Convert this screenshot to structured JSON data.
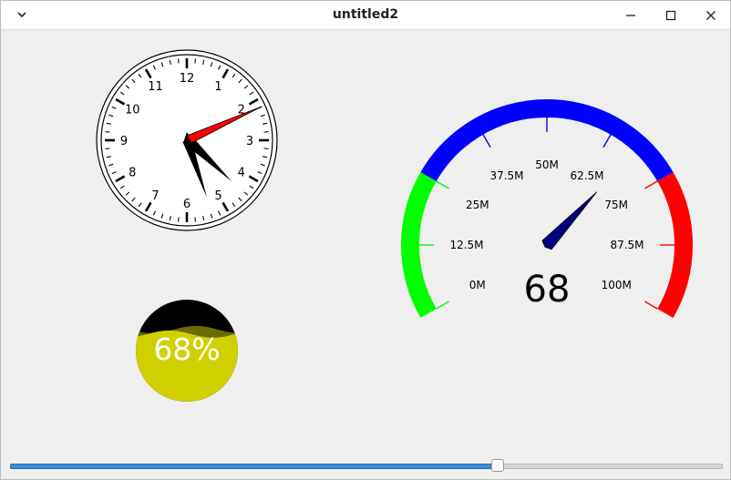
{
  "window": {
    "title": "untitled2",
    "icons": {
      "menu": "chevron-down-icon",
      "minimize": "minimize-icon",
      "maximize": "maximize-icon",
      "close": "close-icon"
    }
  },
  "clock": {
    "numbers": [
      "12",
      "1",
      "2",
      "3",
      "4",
      "5",
      "6",
      "7",
      "8",
      "9",
      "10",
      "11"
    ],
    "hour_hand_color": "#000000",
    "second_hand_color": "#ff0000"
  },
  "gauge": {
    "value_label": "68",
    "value": 68,
    "min": 0,
    "max": 100,
    "tick_labels": [
      "0M",
      "12.5M",
      "25M",
      "37.5M",
      "50M",
      "62.5M",
      "75M",
      "87.5M",
      "100M"
    ],
    "colors": {
      "low": "#00ff00",
      "mid": "#0000ff",
      "high": "#ff0000",
      "needle": "#000080"
    }
  },
  "water_gauge": {
    "label": "68%",
    "level": 0.68,
    "fill_color": "#d0d000",
    "empty_color": "#000000"
  },
  "slider": {
    "value": 0.68
  }
}
